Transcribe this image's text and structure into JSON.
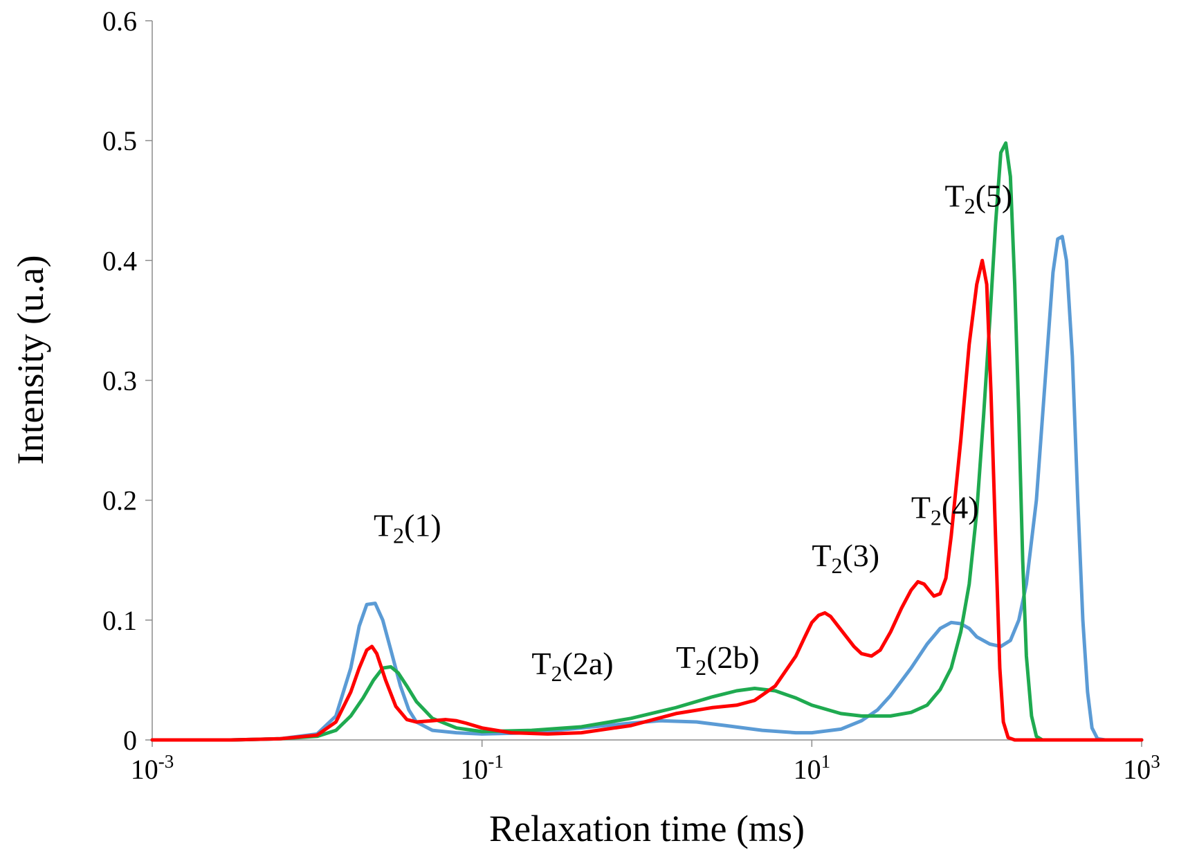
{
  "chart_data": {
    "type": "line",
    "xlabel": "Relaxation time (ms)",
    "ylabel": "Intensity (u.a)",
    "x_scale": "log",
    "xlim": [
      0.001,
      1000
    ],
    "ylim": [
      0,
      0.6
    ],
    "grid": false,
    "y_ticks": [
      "0",
      "0.1",
      "0.2",
      "0.3",
      "0.4",
      "0.5",
      "0.6"
    ],
    "x_ticks": [
      {
        "base": "10",
        "exp": "-3"
      },
      {
        "base": "10",
        "exp": "-1"
      },
      {
        "base": "10",
        "exp": "1"
      },
      {
        "base": "10",
        "exp": "3"
      }
    ],
    "annotations": [
      {
        "main": "T",
        "sub": "2",
        "rest": "(1)",
        "x": 0.022,
        "y": 0.17
      },
      {
        "main": "T",
        "sub": "2",
        "rest": "(2a)",
        "x": 0.2,
        "y": 0.055
      },
      {
        "main": "T",
        "sub": "2",
        "rest": "(2b)",
        "x": 1.5,
        "y": 0.06
      },
      {
        "main": "T",
        "sub": "2",
        "rest": "(3)",
        "x": 10,
        "y": 0.145
      },
      {
        "main": "T",
        "sub": "2",
        "rest": "(4)",
        "x": 40,
        "y": 0.185
      },
      {
        "main": "T",
        "sub": "2",
        "rest": "(5)",
        "x": 64,
        "y": 0.445
      }
    ],
    "series": [
      {
        "color": "#5b9bd5",
        "points": [
          [
            0.001,
            0
          ],
          [
            0.003,
            0
          ],
          [
            0.006,
            0.001
          ],
          [
            0.01,
            0.005
          ],
          [
            0.013,
            0.02
          ],
          [
            0.016,
            0.06
          ],
          [
            0.018,
            0.095
          ],
          [
            0.02,
            0.113
          ],
          [
            0.0225,
            0.114
          ],
          [
            0.025,
            0.1
          ],
          [
            0.028,
            0.075
          ],
          [
            0.032,
            0.045
          ],
          [
            0.036,
            0.025
          ],
          [
            0.04,
            0.015
          ],
          [
            0.05,
            0.008
          ],
          [
            0.07,
            0.006
          ],
          [
            0.1,
            0.005
          ],
          [
            0.2,
            0.006
          ],
          [
            0.4,
            0.01
          ],
          [
            0.8,
            0.014
          ],
          [
            1.2,
            0.016
          ],
          [
            2,
            0.015
          ],
          [
            3,
            0.012
          ],
          [
            5,
            0.008
          ],
          [
            8,
            0.006
          ],
          [
            10,
            0.006
          ],
          [
            15,
            0.009
          ],
          [
            20,
            0.016
          ],
          [
            25,
            0.025
          ],
          [
            30,
            0.037
          ],
          [
            40,
            0.06
          ],
          [
            50,
            0.08
          ],
          [
            60,
            0.093
          ],
          [
            70,
            0.098
          ],
          [
            80,
            0.097
          ],
          [
            90,
            0.093
          ],
          [
            100,
            0.086
          ],
          [
            120,
            0.08
          ],
          [
            140,
            0.078
          ],
          [
            160,
            0.083
          ],
          [
            180,
            0.1
          ],
          [
            200,
            0.13
          ],
          [
            230,
            0.2
          ],
          [
            260,
            0.3
          ],
          [
            290,
            0.39
          ],
          [
            310,
            0.418
          ],
          [
            330,
            0.42
          ],
          [
            350,
            0.4
          ],
          [
            380,
            0.32
          ],
          [
            410,
            0.2
          ],
          [
            440,
            0.1
          ],
          [
            470,
            0.04
          ],
          [
            500,
            0.01
          ],
          [
            540,
            0.001
          ],
          [
            600,
            0
          ],
          [
            1000,
            0
          ]
        ]
      },
      {
        "color": "#1faa50",
        "points": [
          [
            0.001,
            0
          ],
          [
            0.003,
            0
          ],
          [
            0.006,
            0.001
          ],
          [
            0.01,
            0.003
          ],
          [
            0.013,
            0.008
          ],
          [
            0.016,
            0.02
          ],
          [
            0.019,
            0.035
          ],
          [
            0.022,
            0.05
          ],
          [
            0.025,
            0.06
          ],
          [
            0.028,
            0.061
          ],
          [
            0.031,
            0.056
          ],
          [
            0.035,
            0.045
          ],
          [
            0.04,
            0.032
          ],
          [
            0.05,
            0.018
          ],
          [
            0.07,
            0.01
          ],
          [
            0.1,
            0.007
          ],
          [
            0.2,
            0.008
          ],
          [
            0.4,
            0.011
          ],
          [
            0.8,
            0.018
          ],
          [
            1.5,
            0.027
          ],
          [
            2.5,
            0.036
          ],
          [
            3.5,
            0.041
          ],
          [
            4.5,
            0.043
          ],
          [
            6,
            0.041
          ],
          [
            8,
            0.035
          ],
          [
            10,
            0.029
          ],
          [
            15,
            0.022
          ],
          [
            20,
            0.02
          ],
          [
            30,
            0.02
          ],
          [
            40,
            0.023
          ],
          [
            50,
            0.029
          ],
          [
            60,
            0.042
          ],
          [
            70,
            0.06
          ],
          [
            80,
            0.09
          ],
          [
            90,
            0.13
          ],
          [
            100,
            0.19
          ],
          [
            110,
            0.27
          ],
          [
            120,
            0.35
          ],
          [
            130,
            0.43
          ],
          [
            140,
            0.49
          ],
          [
            150,
            0.498
          ],
          [
            160,
            0.47
          ],
          [
            170,
            0.38
          ],
          [
            180,
            0.27
          ],
          [
            190,
            0.15
          ],
          [
            200,
            0.07
          ],
          [
            215,
            0.02
          ],
          [
            230,
            0.003
          ],
          [
            250,
            0
          ],
          [
            1000,
            0
          ]
        ]
      },
      {
        "color": "#ff0000",
        "points": [
          [
            0.001,
            0
          ],
          [
            0.003,
            0
          ],
          [
            0.006,
            0.001
          ],
          [
            0.01,
            0.004
          ],
          [
            0.013,
            0.015
          ],
          [
            0.016,
            0.04
          ],
          [
            0.018,
            0.06
          ],
          [
            0.02,
            0.075
          ],
          [
            0.0215,
            0.078
          ],
          [
            0.023,
            0.072
          ],
          [
            0.026,
            0.05
          ],
          [
            0.03,
            0.028
          ],
          [
            0.035,
            0.017
          ],
          [
            0.04,
            0.015
          ],
          [
            0.05,
            0.016
          ],
          [
            0.06,
            0.017
          ],
          [
            0.07,
            0.016
          ],
          [
            0.08,
            0.014
          ],
          [
            0.1,
            0.01
          ],
          [
            0.15,
            0.006
          ],
          [
            0.25,
            0.005
          ],
          [
            0.4,
            0.006
          ],
          [
            0.8,
            0.012
          ],
          [
            1.5,
            0.022
          ],
          [
            2.5,
            0.027
          ],
          [
            3.5,
            0.029
          ],
          [
            4.5,
            0.033
          ],
          [
            6,
            0.045
          ],
          [
            8,
            0.07
          ],
          [
            9,
            0.085
          ],
          [
            10,
            0.098
          ],
          [
            11,
            0.104
          ],
          [
            12,
            0.106
          ],
          [
            13,
            0.103
          ],
          [
            15,
            0.092
          ],
          [
            18,
            0.078
          ],
          [
            20,
            0.072
          ],
          [
            23,
            0.07
          ],
          [
            26,
            0.075
          ],
          [
            30,
            0.09
          ],
          [
            35,
            0.11
          ],
          [
            40,
            0.125
          ],
          [
            44,
            0.132
          ],
          [
            48,
            0.13
          ],
          [
            52,
            0.124
          ],
          [
            55,
            0.12
          ],
          [
            60,
            0.122
          ],
          [
            65,
            0.135
          ],
          [
            70,
            0.17
          ],
          [
            80,
            0.25
          ],
          [
            90,
            0.33
          ],
          [
            100,
            0.38
          ],
          [
            108,
            0.4
          ],
          [
            115,
            0.38
          ],
          [
            122,
            0.29
          ],
          [
            130,
            0.17
          ],
          [
            138,
            0.06
          ],
          [
            145,
            0.015
          ],
          [
            155,
            0.002
          ],
          [
            170,
            0
          ],
          [
            1000,
            0
          ]
        ]
      }
    ]
  }
}
